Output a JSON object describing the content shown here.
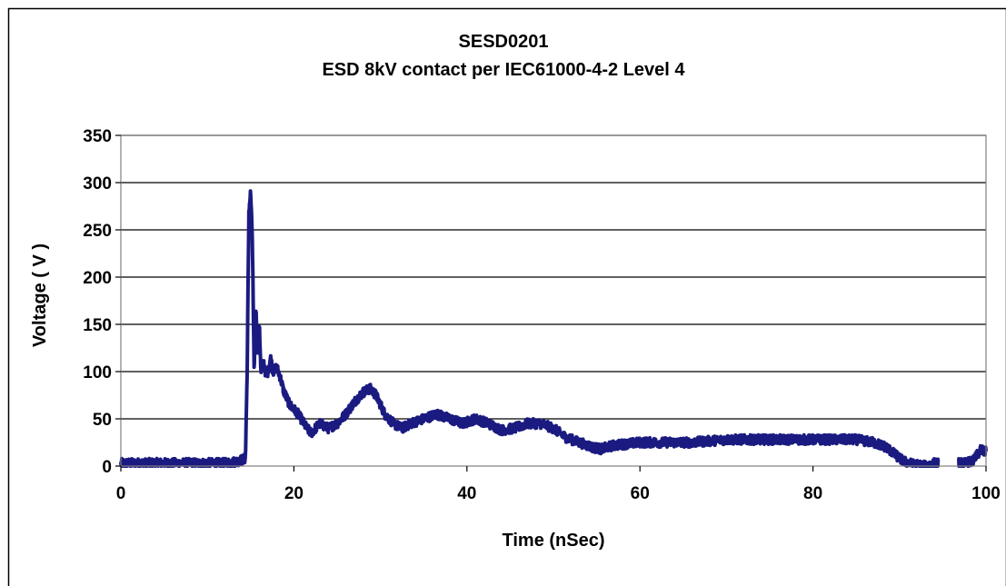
{
  "chart_data": {
    "type": "line",
    "title": "SESD0201",
    "subtitle": "ESD 8kV contact per IEC61000-4-2 Level 4",
    "xlabel": "Time (nSec)",
    "ylabel": "Voltage ( V )",
    "xlim": [
      0,
      100
    ],
    "ylim": [
      0,
      350
    ],
    "xticks": [
      0,
      20,
      40,
      60,
      80,
      100
    ],
    "yticks": [
      0,
      50,
      100,
      150,
      200,
      250,
      300,
      350
    ],
    "x_tick_labels": [
      "0",
      "20",
      "40",
      "60",
      "80",
      "100"
    ],
    "y_tick_labels": [
      "0",
      "50",
      "100",
      "150",
      "200",
      "250",
      "300",
      "350"
    ],
    "grid": "horizontal",
    "legend": "none",
    "series": [
      {
        "color": "#1a1a80",
        "x": [
          0,
          2,
          4,
          6,
          8,
          10,
          12,
          13.5,
          14.4,
          14.6,
          14.8,
          15.0,
          15.2,
          15.4,
          15.6,
          15.8,
          16.0,
          16.2,
          16.5,
          16.8,
          17.0,
          17.3,
          17.6,
          18.0,
          18.4,
          18.8,
          19.5,
          20.5,
          21.5,
          22.0,
          22.5,
          23.0,
          24.0,
          25.0,
          26.0,
          27.0,
          28.0,
          28.8,
          29.5,
          30.5,
          31.5,
          32.5,
          33.5,
          35.0,
          36.5,
          38.0,
          39.5,
          41.0,
          42.5,
          44.0,
          45.5,
          47.0,
          48.5,
          50.0,
          51.5,
          53.0,
          54.5,
          55.5,
          57.0,
          60.0,
          63.0,
          66.0,
          70.0,
          75.0,
          80.0,
          85.0,
          87.0,
          88.5,
          89.5,
          90.5,
          91.5,
          93.0,
          94.0,
          96.5,
          97.5,
          98.5,
          99.0,
          99.5,
          100.0
        ],
        "values": [
          3,
          3,
          3,
          3,
          3,
          3,
          3,
          5,
          8,
          100,
          270,
          290,
          240,
          100,
          170,
          120,
          150,
          100,
          110,
          95,
          100,
          115,
          100,
          105,
          95,
          80,
          65,
          55,
          40,
          35,
          40,
          45,
          40,
          45,
          55,
          68,
          78,
          82,
          75,
          55,
          45,
          40,
          45,
          50,
          55,
          50,
          45,
          50,
          45,
          38,
          40,
          45,
          45,
          40,
          30,
          25,
          20,
          18,
          22,
          25,
          25,
          25,
          28,
          28,
          28,
          28,
          25,
          20,
          12,
          5,
          2,
          0,
          3,
          3,
          3,
          5,
          12,
          18,
          15
        ],
        "noise": 5,
        "drop_ranges": [
          [
            94.5,
            96.8
          ]
        ]
      }
    ]
  }
}
